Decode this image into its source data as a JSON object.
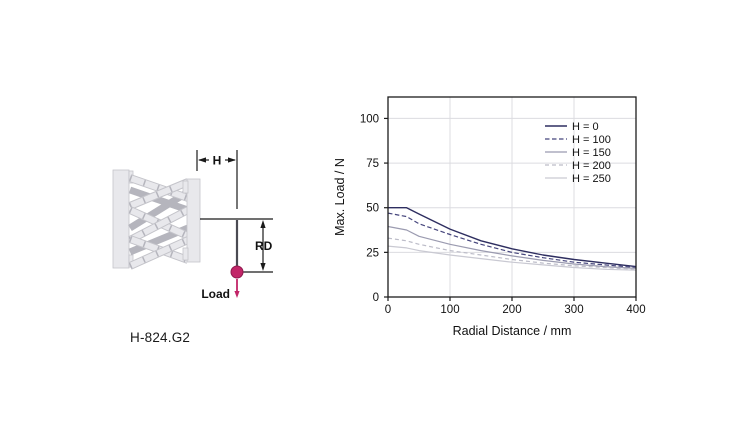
{
  "figure": {
    "model_label": "H-824.G2"
  },
  "diagram": {
    "dim_h_label": "H",
    "dim_rd_label": "RD",
    "load_label": "Load"
  },
  "colors": {
    "navy": "#2e2e60",
    "navy_dash": "#45457c",
    "gray_blue": "#9b9bb0",
    "light_gray_dash": "#bcbcc8",
    "light_gray": "#c9c9d2",
    "grid": "#dcdce0",
    "frame": "#1c1c1c",
    "tick_text": "#111111",
    "magenta": "#c22568",
    "magenta_dark": "#8f1a4e",
    "hex_light": "#e8e8ec",
    "hex_mid": "#d2d2d8",
    "hex_dark": "#b5b5bd",
    "hex_outline": "#c4c4ca",
    "dim_line": "#1a1a1a",
    "offset_line": "#4a4a52"
  },
  "chart_data": {
    "type": "line",
    "title": "",
    "xlabel": "Radial Distance / mm",
    "ylabel": "Max. Load / N",
    "xlim": [
      0,
      400
    ],
    "ylim": [
      0,
      112
    ],
    "xticks": [
      0,
      100,
      200,
      300,
      400
    ],
    "yticks": [
      0,
      25,
      50,
      75,
      100
    ],
    "grid": true,
    "legend_position": "top-right",
    "x": [
      0,
      30,
      50,
      100,
      150,
      200,
      250,
      300,
      350,
      400
    ],
    "series": [
      {
        "name": "H = 0",
        "style": "solid",
        "color": "#2e2e60",
        "width": 1.4,
        "values": [
          50,
          50,
          46.5,
          38,
          31.5,
          27,
          23.5,
          21,
          19,
          17
        ]
      },
      {
        "name": "H = 100",
        "style": "dashed",
        "color": "#45457c",
        "width": 1.2,
        "values": [
          47,
          45,
          41,
          35,
          29.5,
          25,
          22,
          19.5,
          18,
          16.5
        ]
      },
      {
        "name": "H = 150",
        "style": "solid",
        "color": "#9b9bb0",
        "width": 1.2,
        "values": [
          39.5,
          37.5,
          34,
          29.5,
          26,
          23,
          20.5,
          18.5,
          17,
          16
        ]
      },
      {
        "name": "H = 200",
        "style": "dashed",
        "color": "#bcbcc8",
        "width": 1.2,
        "values": [
          33,
          31.5,
          29.5,
          26,
          23.5,
          21,
          19,
          17.5,
          16.5,
          15.5
        ]
      },
      {
        "name": "H = 250",
        "style": "solid",
        "color": "#c9c9d2",
        "width": 1.2,
        "values": [
          28.5,
          27.5,
          26,
          23.5,
          21.5,
          19.5,
          18,
          16.5,
          15.5,
          15
        ]
      }
    ]
  }
}
